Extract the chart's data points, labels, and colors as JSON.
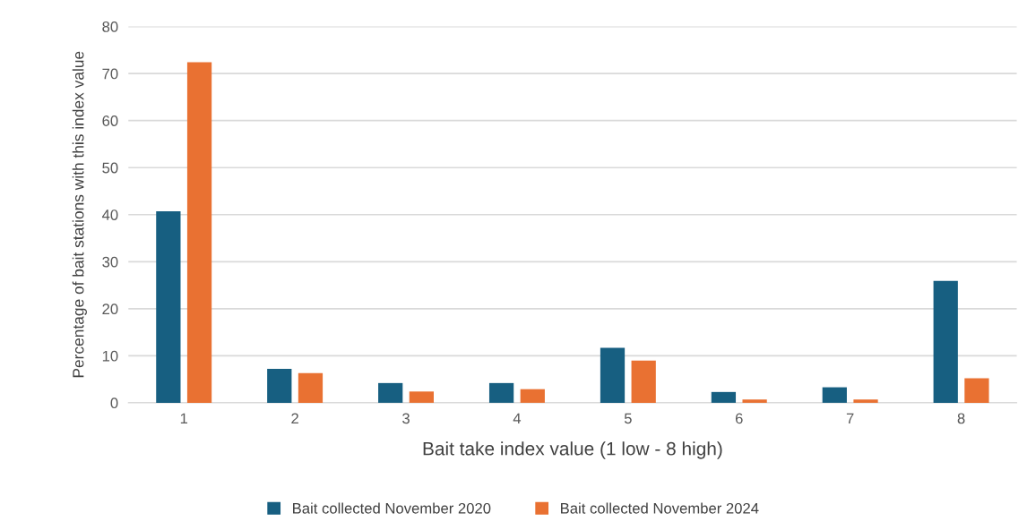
{
  "chart_data": {
    "type": "bar",
    "xlabel": "Bait take index value (1 low - 8 high)",
    "ylabel": "Percentage of bait stations with this index value",
    "categories": [
      "1",
      "2",
      "3",
      "4",
      "5",
      "6",
      "7",
      "8"
    ],
    "series": [
      {
        "name": "Bait collected November 2020",
        "color": "#175f81",
        "values": [
          40.7,
          7.2,
          4.2,
          4.2,
          11.7,
          2.3,
          3.3,
          25.9
        ]
      },
      {
        "name": "Bait collected November 2024",
        "color": "#e97132",
        "values": [
          72.4,
          6.3,
          2.4,
          2.9,
          9.0,
          0.7,
          0.7,
          5.2
        ]
      }
    ],
    "ylim": [
      0,
      80
    ],
    "yticks": [
      0,
      10,
      20,
      30,
      40,
      50,
      60,
      70,
      80
    ],
    "grid": "y",
    "legend": "bottom"
  }
}
